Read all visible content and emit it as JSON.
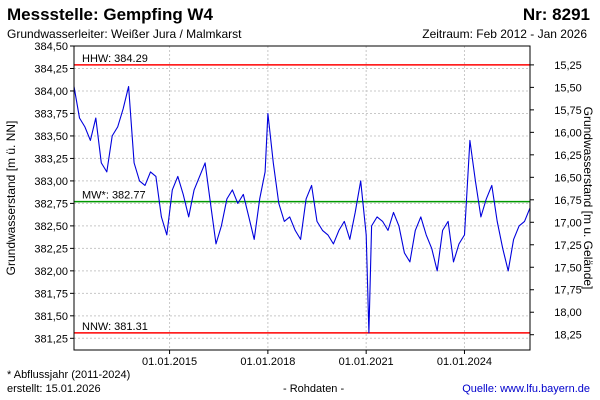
{
  "header": {
    "title": "Messstelle: Gempfing W4",
    "station_no": "Nr: 8291",
    "aquifer": "Grundwasserleiter:  Weißer Jura / Malmkarst",
    "period": "Zeitraum: Feb 2012 - Jan 2026"
  },
  "footer": {
    "note": "* Abflussjahr (2011-2024)",
    "created": "erstellt:  15.01.2026",
    "raw": "- Rohdaten -",
    "source_label": "Quelle: ",
    "source_link": "www.lfu.bayern.de"
  },
  "colors": {
    "series": "#0000dd",
    "hhw": "#ff0000",
    "nnw": "#ff0000",
    "mw": "#009900",
    "grid": "#c8c8c8"
  },
  "chart_data": {
    "type": "line",
    "ylabel": "Grundwasserstand [m ü. NN]",
    "y2label": "Grundwasserstand [m u. Gelände]",
    "ylim": [
      381.12,
      384.5
    ],
    "xlim": [
      "2012-02",
      "2026-01"
    ],
    "yticks": [
      "384,50",
      "384,25",
      "384,00",
      "383,75",
      "383,50",
      "383,25",
      "383,00",
      "382,75",
      "382,50",
      "382,25",
      "382,00",
      "381,75",
      "381,50",
      "381,25"
    ],
    "ytick_values": [
      384.5,
      384.25,
      384.0,
      383.75,
      383.5,
      383.25,
      383.0,
      382.75,
      382.5,
      382.25,
      382.0,
      381.75,
      381.5,
      381.25
    ],
    "y2ticks": [
      "15,25",
      "15,50",
      "15,75",
      "16,00",
      "16,25",
      "16,50",
      "16,75",
      "17,00",
      "17,25",
      "17,50",
      "17,75",
      "18,00",
      "18,25"
    ],
    "y2tick_values": [
      384.29,
      384.04,
      383.79,
      383.54,
      383.29,
      383.04,
      382.79,
      382.54,
      382.29,
      382.04,
      381.79,
      381.54,
      381.29
    ],
    "xticks": [
      {
        "label": "01.01.2015",
        "date": "2015-01"
      },
      {
        "label": "01.01.2018",
        "date": "2018-01"
      },
      {
        "label": "01.01.2021",
        "date": "2021-01"
      },
      {
        "label": "01.01.2024",
        "date": "2024-01"
      }
    ],
    "reference_lines": [
      {
        "key": "hhw",
        "label": "HHW: 384.29",
        "value": 384.29
      },
      {
        "key": "mw",
        "label": "MW*: 382.77",
        "value": 382.77
      },
      {
        "key": "nnw",
        "label": "NNW: 381.31",
        "value": 381.31
      }
    ],
    "series": [
      {
        "points": [
          [
            "2012-02",
            384.05
          ],
          [
            "2012-04",
            383.7
          ],
          [
            "2012-06",
            383.6
          ],
          [
            "2012-08",
            383.45
          ],
          [
            "2012-10",
            383.7
          ],
          [
            "2012-12",
            383.2
          ],
          [
            "2013-02",
            383.1
          ],
          [
            "2013-04",
            383.5
          ],
          [
            "2013-06",
            383.6
          ],
          [
            "2013-08",
            383.8
          ],
          [
            "2013-10",
            384.05
          ],
          [
            "2013-12",
            383.2
          ],
          [
            "2014-02",
            383.0
          ],
          [
            "2014-04",
            382.95
          ],
          [
            "2014-06",
            383.1
          ],
          [
            "2014-08",
            383.05
          ],
          [
            "2014-10",
            382.6
          ],
          [
            "2014-12",
            382.4
          ],
          [
            "2015-02",
            382.9
          ],
          [
            "2015-04",
            383.05
          ],
          [
            "2015-06",
            382.85
          ],
          [
            "2015-08",
            382.6
          ],
          [
            "2015-10",
            382.9
          ],
          [
            "2015-12",
            383.05
          ],
          [
            "2016-02",
            383.2
          ],
          [
            "2016-04",
            382.75
          ],
          [
            "2016-06",
            382.3
          ],
          [
            "2016-08",
            382.5
          ],
          [
            "2016-10",
            382.8
          ],
          [
            "2016-12",
            382.9
          ],
          [
            "2017-02",
            382.75
          ],
          [
            "2017-04",
            382.85
          ],
          [
            "2017-06",
            382.6
          ],
          [
            "2017-08",
            382.35
          ],
          [
            "2017-10",
            382.8
          ],
          [
            "2017-12",
            383.1
          ],
          [
            "2018-01",
            383.75
          ],
          [
            "2018-03",
            383.2
          ],
          [
            "2018-05",
            382.75
          ],
          [
            "2018-07",
            382.55
          ],
          [
            "2018-09",
            382.6
          ],
          [
            "2018-11",
            382.45
          ],
          [
            "2019-01",
            382.35
          ],
          [
            "2019-03",
            382.8
          ],
          [
            "2019-05",
            382.95
          ],
          [
            "2019-07",
            382.55
          ],
          [
            "2019-09",
            382.45
          ],
          [
            "2019-11",
            382.4
          ],
          [
            "2020-01",
            382.3
          ],
          [
            "2020-03",
            382.45
          ],
          [
            "2020-05",
            382.55
          ],
          [
            "2020-07",
            382.35
          ],
          [
            "2020-09",
            382.65
          ],
          [
            "2020-11",
            383.0
          ],
          [
            "2021-01",
            382.4
          ],
          [
            "2021-02",
            381.31
          ],
          [
            "2021-03",
            382.5
          ],
          [
            "2021-05",
            382.6
          ],
          [
            "2021-07",
            382.55
          ],
          [
            "2021-09",
            382.45
          ],
          [
            "2021-11",
            382.65
          ],
          [
            "2022-01",
            382.5
          ],
          [
            "2022-03",
            382.2
          ],
          [
            "2022-05",
            382.1
          ],
          [
            "2022-07",
            382.45
          ],
          [
            "2022-09",
            382.6
          ],
          [
            "2022-11",
            382.4
          ],
          [
            "2023-01",
            382.25
          ],
          [
            "2023-03",
            382.0
          ],
          [
            "2023-05",
            382.45
          ],
          [
            "2023-07",
            382.55
          ],
          [
            "2023-09",
            382.1
          ],
          [
            "2023-11",
            382.3
          ],
          [
            "2024-01",
            382.4
          ],
          [
            "2024-03",
            383.45
          ],
          [
            "2024-05",
            383.0
          ],
          [
            "2024-07",
            382.6
          ],
          [
            "2024-09",
            382.8
          ],
          [
            "2024-11",
            382.95
          ],
          [
            "2025-01",
            382.55
          ],
          [
            "2025-03",
            382.25
          ],
          [
            "2025-05",
            382.0
          ],
          [
            "2025-07",
            382.35
          ],
          [
            "2025-09",
            382.5
          ],
          [
            "2025-11",
            382.55
          ],
          [
            "2026-01",
            382.7
          ]
        ]
      }
    ]
  }
}
